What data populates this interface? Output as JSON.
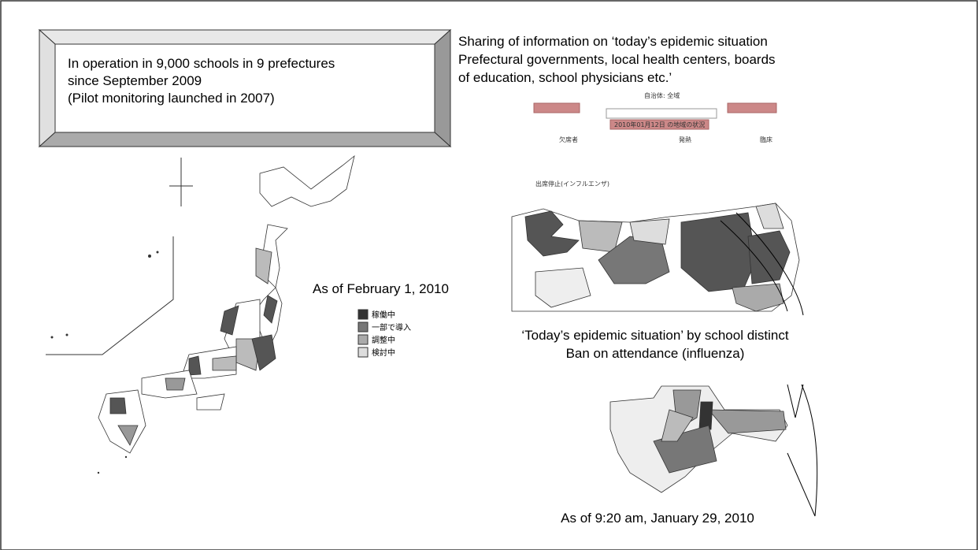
{
  "callout": {
    "lines": [
      "In operation in 9,000 schools in 9 prefectures",
      "since September 2009",
      "(Pilot monitoring launched in 2007)"
    ]
  },
  "sharing": {
    "lines": [
      "Sharing of information on ‘today’s epidemic situation",
      "Prefectural governments, local health centers, boards",
      "of education, school physicians etc.’"
    ]
  },
  "japan_map": {
    "date": "As of February 1, 2010",
    "legend": [
      "稼働中",
      "一部で導入",
      "調整中",
      "検討中"
    ]
  },
  "screenshot": {
    "municipality": "自治体: 全域",
    "status_title": "2010年01月12日 の地域の状況",
    "columns": [
      "欠席者",
      "発熱",
      "臨床"
    ],
    "selected": "出席停止(インフルエンザ)"
  },
  "district_map": {
    "caption_lines": [
      "‘Today’s epidemic situation’ by school distinct",
      "Ban on attendance (influenza)"
    ]
  },
  "zoom_map": {
    "date": "As of 9:20 am, January 29, 2010"
  }
}
